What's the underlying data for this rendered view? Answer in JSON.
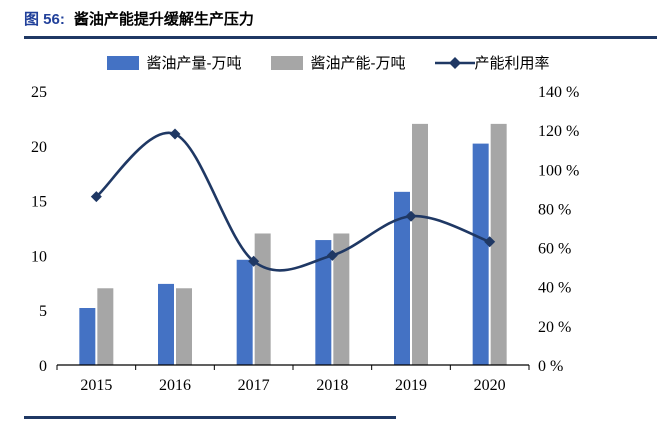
{
  "header": {
    "figure_label": "图 56:",
    "title": "酱油产能提升缓解生产压力"
  },
  "colors": {
    "figure_label_color": "#21409a",
    "rule_color": "#1f3864",
    "production_bar": "#4472c4",
    "capacity_bar": "#a6a6a6",
    "utilization_line": "#1f3864",
    "axis_color": "#000000"
  },
  "chart_data": {
    "type": "bar+line",
    "title": "酱油产能提升缓解生产压力",
    "categories": [
      "2015",
      "2016",
      "2017",
      "2018",
      "2019",
      "2020"
    ],
    "series": [
      {
        "name": "酱油产量-万吨",
        "type": "bar",
        "axis": "left",
        "color": "#4472c4",
        "values": [
          5.2,
          7.4,
          9.6,
          11.4,
          15.8,
          20.2
        ]
      },
      {
        "name": "酱油产能-万吨",
        "type": "bar",
        "axis": "left",
        "color": "#a6a6a6",
        "values": [
          7.0,
          7.0,
          12.0,
          12.0,
          22.0,
          22.0
        ]
      },
      {
        "name": "产能利用率",
        "type": "line",
        "axis": "right",
        "color": "#1f3864",
        "values": [
          86,
          118,
          53,
          56,
          76,
          63
        ]
      }
    ],
    "left_axis": {
      "min": 0,
      "max": 25,
      "tick_values": [
        0,
        5,
        10,
        15,
        20,
        25
      ],
      "tick_labels": [
        "0",
        "5",
        "10",
        "15",
        "20",
        "25"
      ]
    },
    "right_axis": {
      "min": 0,
      "max": 140,
      "tick_values": [
        0,
        20,
        40,
        60,
        80,
        100,
        120,
        140
      ],
      "tick_labels": [
        "0 %",
        "20 %",
        "40 %",
        "60 %",
        "80 %",
        "100 %",
        "120 %",
        "140 %"
      ]
    },
    "grid": false,
    "legend_position": "top"
  }
}
